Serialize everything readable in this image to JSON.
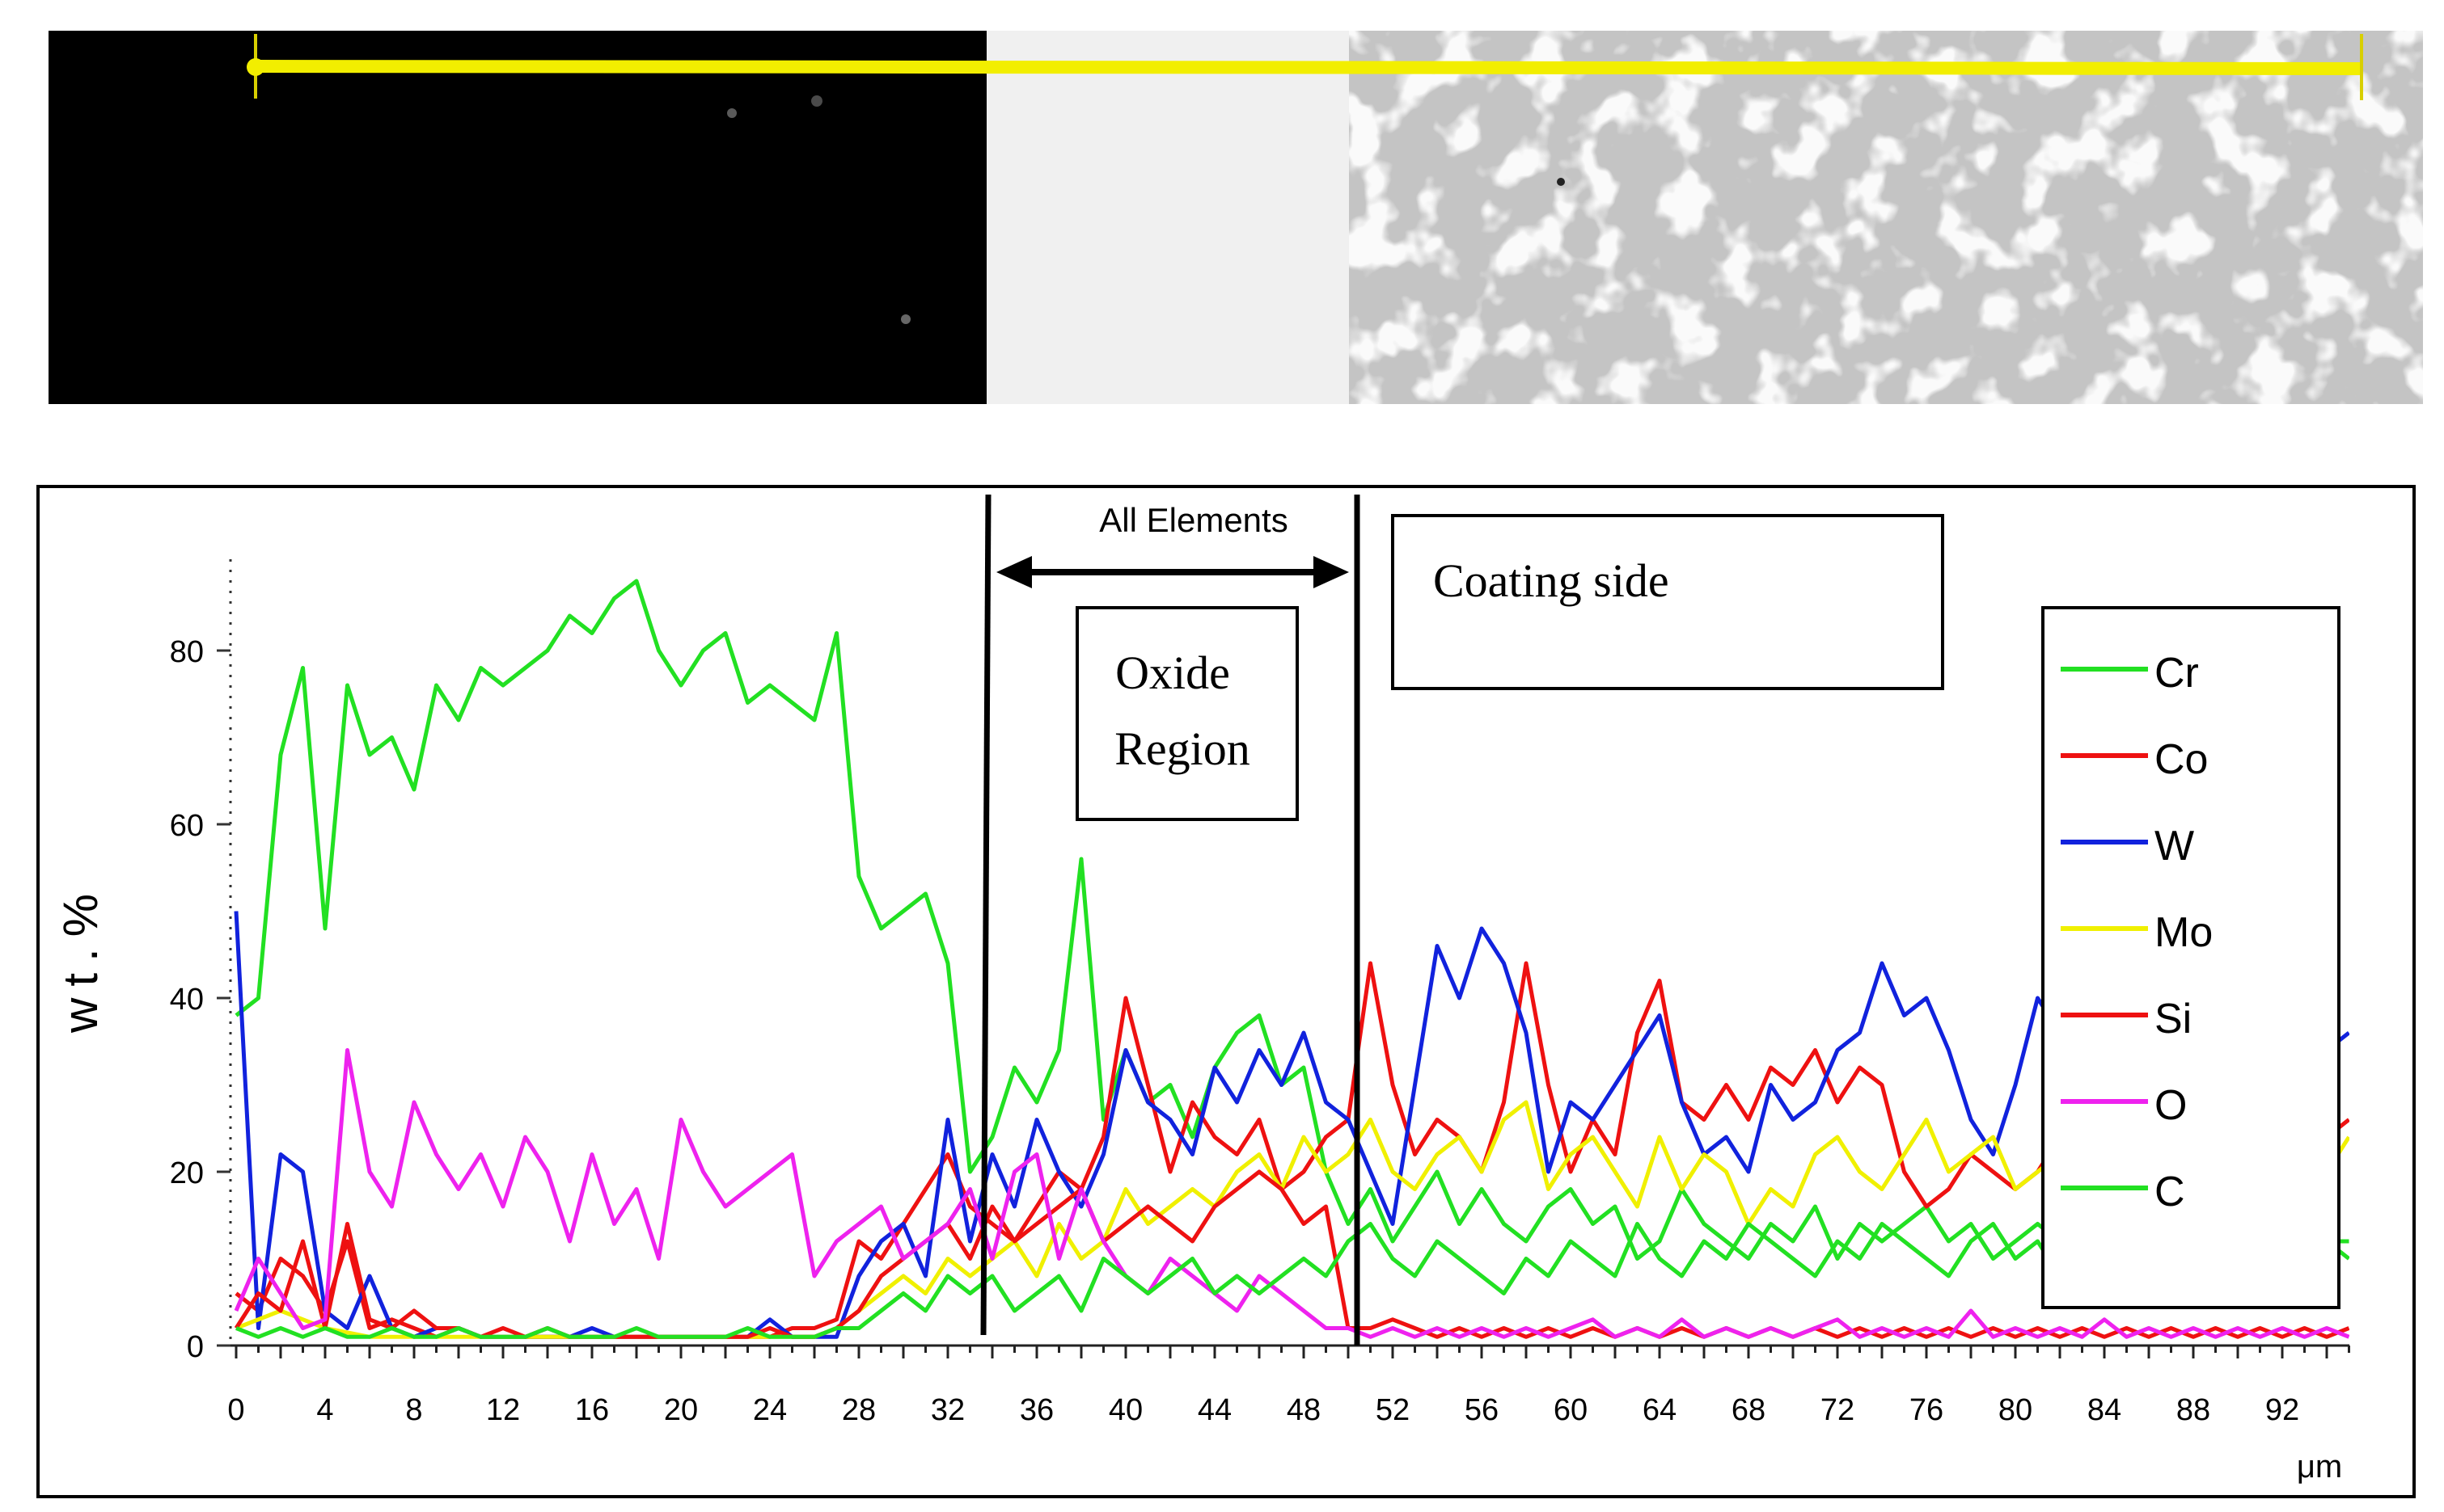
{
  "chart_data": {
    "type": "line",
    "title": "",
    "xlabel": "μm",
    "ylabel": "wt.%",
    "xlim": [
      0,
      95
    ],
    "ylim": [
      0,
      90
    ],
    "x_ticks": [
      "0",
      "4",
      "8",
      "12",
      "16",
      "20",
      "24",
      "28",
      "32",
      "36",
      "40",
      "44",
      "48",
      "52",
      "56",
      "60",
      "64",
      "68",
      "72",
      "76",
      "80",
      "84",
      "88",
      "92"
    ],
    "y_ticks": [
      "0",
      "20",
      "40",
      "60",
      "80"
    ],
    "grid": false,
    "legend_position": "right",
    "colors": {
      "Cr": "#22e022",
      "Co": "#ee1111",
      "W": "#1122dd",
      "Mo": "#f0f000",
      "Si": "#ee1111",
      "O": "#ee22ee",
      "C": "#22e022"
    },
    "annotations": {
      "region_arrow": "All Elements",
      "oxide_line1": "Oxide",
      "oxide_line2": "Region",
      "coating": "Coating side"
    },
    "series": [
      {
        "name": "Cr",
        "x": [
          0,
          1,
          2,
          3,
          4,
          5,
          6,
          7,
          8,
          9,
          10,
          11,
          12,
          13,
          14,
          15,
          16,
          17,
          18,
          19,
          20,
          21,
          22,
          23,
          24,
          25,
          26,
          27,
          28,
          29,
          30,
          31,
          32,
          33,
          34,
          35,
          36,
          37,
          38,
          39,
          40,
          41,
          42,
          43,
          44,
          45,
          46,
          47,
          48,
          49,
          50,
          51,
          52,
          53,
          54,
          55,
          56,
          57,
          58,
          59,
          60,
          61,
          62,
          63,
          64,
          65,
          66,
          67,
          68,
          69,
          70,
          71,
          72,
          73,
          74,
          75,
          76,
          77,
          78,
          79,
          80,
          81,
          82,
          83,
          84,
          85,
          86,
          87,
          88,
          89,
          90,
          91,
          92,
          93,
          94,
          95
        ],
        "values": [
          38,
          40,
          68,
          78,
          48,
          76,
          68,
          70,
          64,
          76,
          72,
          78,
          76,
          78,
          80,
          84,
          82,
          86,
          88,
          80,
          76,
          80,
          82,
          74,
          76,
          74,
          72,
          82,
          54,
          48,
          50,
          52,
          44,
          20,
          24,
          32,
          28,
          34,
          56,
          26,
          34,
          28,
          30,
          24,
          32,
          36,
          38,
          30,
          32,
          20,
          14,
          18,
          12,
          16,
          20,
          14,
          18,
          14,
          12,
          16,
          18,
          14,
          16,
          10,
          12,
          18,
          14,
          12,
          10,
          14,
          12,
          16,
          10,
          14,
          12,
          14,
          16,
          12,
          14,
          10,
          12,
          14,
          12,
          10,
          12,
          14,
          12,
          10,
          12,
          14,
          10,
          12,
          14,
          10,
          12,
          12
        ]
      },
      {
        "name": "Co",
        "x": [
          0,
          1,
          2,
          3,
          4,
          5,
          6,
          7,
          8,
          9,
          10,
          11,
          12,
          13,
          14,
          15,
          16,
          17,
          18,
          19,
          20,
          21,
          22,
          23,
          24,
          25,
          26,
          27,
          28,
          29,
          30,
          31,
          32,
          33,
          34,
          35,
          36,
          37,
          38,
          39,
          40,
          41,
          42,
          43,
          44,
          45,
          46,
          47,
          48,
          49,
          50,
          51,
          52,
          53,
          54,
          55,
          56,
          57,
          58,
          59,
          60,
          61,
          62,
          63,
          64,
          65,
          66,
          67,
          68,
          69,
          70,
          71,
          72,
          73,
          74,
          75,
          76,
          77,
          78,
          79,
          80,
          81,
          82,
          83,
          84,
          85,
          86,
          87,
          88,
          89,
          90,
          91,
          92,
          93,
          94,
          95
        ],
        "values": [
          6,
          4,
          10,
          8,
          4,
          12,
          2,
          3,
          2,
          1,
          2,
          1,
          1,
          1,
          1,
          1,
          1,
          1,
          1,
          1,
          1,
          1,
          1,
          1,
          1,
          2,
          2,
          3,
          12,
          10,
          14,
          18,
          22,
          16,
          14,
          12,
          16,
          20,
          18,
          24,
          40,
          30,
          20,
          28,
          24,
          22,
          26,
          18,
          20,
          24,
          26,
          44,
          30,
          22,
          26,
          24,
          20,
          28,
          44,
          30,
          20,
          26,
          22,
          36,
          42,
          28,
          26,
          30,
          26,
          32,
          30,
          34,
          28,
          32,
          30,
          20,
          16,
          18,
          22,
          20,
          18,
          20,
          24,
          22,
          24,
          22,
          26,
          20,
          24,
          22,
          22,
          24,
          26,
          22,
          24,
          26
        ]
      },
      {
        "name": "W",
        "x": [
          0,
          1,
          2,
          3,
          4,
          5,
          6,
          7,
          8,
          9,
          10,
          11,
          12,
          13,
          14,
          15,
          16,
          17,
          18,
          19,
          20,
          21,
          22,
          23,
          24,
          25,
          26,
          27,
          28,
          29,
          30,
          31,
          32,
          33,
          34,
          35,
          36,
          37,
          38,
          39,
          40,
          41,
          42,
          43,
          44,
          45,
          46,
          47,
          48,
          49,
          50,
          51,
          52,
          53,
          54,
          55,
          56,
          57,
          58,
          59,
          60,
          61,
          62,
          63,
          64,
          65,
          66,
          67,
          68,
          69,
          70,
          71,
          72,
          73,
          74,
          75,
          76,
          77,
          78,
          79,
          80,
          81,
          82,
          83,
          84,
          85,
          86,
          87,
          88,
          89,
          90,
          91,
          92,
          93,
          94,
          95
        ],
        "values": [
          50,
          2,
          22,
          20,
          4,
          2,
          8,
          2,
          1,
          2,
          2,
          1,
          1,
          1,
          1,
          1,
          2,
          1,
          1,
          1,
          1,
          1,
          1,
          1,
          3,
          1,
          1,
          1,
          8,
          12,
          14,
          8,
          26,
          12,
          22,
          16,
          26,
          20,
          16,
          22,
          34,
          28,
          26,
          22,
          32,
          28,
          34,
          30,
          36,
          28,
          26,
          20,
          14,
          30,
          46,
          40,
          48,
          44,
          36,
          20,
          28,
          26,
          30,
          34,
          38,
          28,
          22,
          24,
          20,
          30,
          26,
          28,
          34,
          36,
          44,
          38,
          40,
          34,
          26,
          22,
          30,
          40,
          36,
          28,
          32,
          34,
          30,
          38,
          26,
          30,
          34,
          28,
          32,
          30,
          34,
          36
        ]
      },
      {
        "name": "Mo",
        "x": [
          0,
          2,
          4,
          6,
          8,
          10,
          12,
          14,
          16,
          18,
          20,
          22,
          24,
          26,
          27,
          28,
          29,
          30,
          31,
          32,
          33,
          34,
          35,
          36,
          37,
          38,
          39,
          40,
          41,
          42,
          43,
          44,
          45,
          46,
          47,
          48,
          49,
          50,
          51,
          52,
          53,
          54,
          55,
          56,
          57,
          58,
          59,
          60,
          61,
          62,
          63,
          64,
          65,
          66,
          67,
          68,
          69,
          70,
          71,
          72,
          73,
          74,
          75,
          76,
          77,
          78,
          79,
          80,
          81,
          82,
          83,
          84,
          85,
          86,
          87,
          88,
          89,
          90,
          91,
          92,
          93,
          94,
          95
        ],
        "values": [
          2,
          4,
          2,
          1,
          1,
          1,
          1,
          1,
          1,
          1,
          1,
          1,
          1,
          1,
          2,
          4,
          6,
          8,
          6,
          10,
          8,
          10,
          12,
          8,
          14,
          10,
          12,
          18,
          14,
          16,
          18,
          16,
          20,
          22,
          18,
          24,
          20,
          22,
          26,
          20,
          18,
          22,
          24,
          20,
          26,
          28,
          18,
          22,
          24,
          20,
          16,
          24,
          18,
          22,
          20,
          14,
          18,
          16,
          22,
          24,
          20,
          18,
          22,
          26,
          20,
          22,
          24,
          18,
          20,
          22,
          20,
          24,
          22,
          20,
          18,
          22,
          24,
          20,
          22,
          24,
          22,
          20,
          24
        ]
      },
      {
        "name": "Si",
        "x": [
          0,
          1,
          2,
          3,
          4,
          5,
          6,
          7,
          8,
          9,
          10,
          11,
          12,
          13,
          14,
          15,
          16,
          17,
          18,
          19,
          20,
          21,
          22,
          23,
          24,
          25,
          26,
          27,
          28,
          29,
          30,
          31,
          32,
          33,
          34,
          35,
          36,
          37,
          38,
          39,
          40,
          41,
          42,
          43,
          44,
          45,
          46,
          47,
          48,
          49,
          50,
          51,
          52,
          53,
          54,
          55,
          56,
          57,
          58,
          59,
          60,
          61,
          62,
          63,
          64,
          65,
          66,
          67,
          68,
          69,
          70,
          71,
          72,
          73,
          74,
          75,
          76,
          77,
          78,
          79,
          80,
          81,
          82,
          83,
          84,
          85,
          86,
          87,
          88,
          89,
          90,
          91,
          92,
          93,
          94,
          95
        ],
        "values": [
          2,
          6,
          4,
          12,
          2,
          14,
          3,
          2,
          4,
          2,
          2,
          1,
          2,
          1,
          2,
          1,
          1,
          1,
          1,
          1,
          1,
          1,
          1,
          1,
          2,
          1,
          1,
          2,
          4,
          8,
          10,
          12,
          14,
          10,
          16,
          12,
          14,
          16,
          18,
          12,
          14,
          16,
          14,
          12,
          16,
          18,
          20,
          18,
          14,
          16,
          2,
          2,
          3,
          2,
          1,
          2,
          1,
          2,
          1,
          2,
          1,
          2,
          1,
          2,
          1,
          2,
          1,
          2,
          1,
          2,
          1,
          2,
          1,
          2,
          1,
          2,
          1,
          2,
          1,
          2,
          1,
          2,
          1,
          2,
          1,
          2,
          1,
          2,
          1,
          2,
          1,
          2,
          1,
          2,
          1,
          2
        ]
      },
      {
        "name": "O",
        "x": [
          0,
          1,
          2,
          3,
          4,
          5,
          6,
          7,
          8,
          9,
          10,
          11,
          12,
          13,
          14,
          15,
          16,
          17,
          18,
          19,
          20,
          21,
          22,
          23,
          24,
          25,
          26,
          27,
          28,
          29,
          30,
          31,
          32,
          33,
          34,
          35,
          36,
          37,
          38,
          39,
          40,
          41,
          42,
          43,
          44,
          45,
          46,
          47,
          48,
          49,
          50,
          51,
          52,
          53,
          54,
          55,
          56,
          57,
          58,
          59,
          60,
          61,
          62,
          63,
          64,
          65,
          66,
          67,
          68,
          69,
          70,
          71,
          72,
          73,
          74,
          75,
          76,
          77,
          78,
          79,
          80,
          81,
          82,
          83,
          84,
          85,
          86,
          87,
          88,
          89,
          90,
          91,
          92,
          93,
          94,
          95
        ],
        "values": [
          4,
          10,
          6,
          2,
          3,
          34,
          20,
          16,
          28,
          22,
          18,
          22,
          16,
          24,
          20,
          12,
          22,
          14,
          18,
          10,
          26,
          20,
          16,
          18,
          20,
          22,
          8,
          12,
          14,
          16,
          10,
          12,
          14,
          18,
          10,
          20,
          22,
          10,
          18,
          12,
          8,
          6,
          10,
          8,
          6,
          4,
          8,
          6,
          4,
          2,
          2,
          1,
          2,
          1,
          2,
          1,
          2,
          1,
          2,
          1,
          2,
          3,
          1,
          2,
          1,
          3,
          1,
          2,
          1,
          2,
          1,
          2,
          3,
          1,
          2,
          1,
          2,
          1,
          4,
          1,
          2,
          1,
          2,
          1,
          3,
          1,
          2,
          1,
          2,
          1,
          2,
          1,
          2,
          1,
          2,
          1
        ]
      },
      {
        "name": "C",
        "x": [
          0,
          1,
          2,
          3,
          4,
          5,
          6,
          7,
          8,
          9,
          10,
          11,
          12,
          13,
          14,
          15,
          16,
          17,
          18,
          19,
          20,
          21,
          22,
          23,
          24,
          25,
          26,
          27,
          28,
          29,
          30,
          31,
          32,
          33,
          34,
          35,
          36,
          37,
          38,
          39,
          40,
          41,
          42,
          43,
          44,
          45,
          46,
          47,
          48,
          49,
          50,
          51,
          52,
          53,
          54,
          55,
          56,
          57,
          58,
          59,
          60,
          61,
          62,
          63,
          64,
          65,
          66,
          67,
          68,
          69,
          70,
          71,
          72,
          73,
          74,
          75,
          76,
          77,
          78,
          79,
          80,
          81,
          82,
          83,
          84,
          85,
          86,
          87,
          88,
          89,
          90,
          91,
          92,
          93,
          94,
          95
        ],
        "values": [
          2,
          1,
          2,
          1,
          2,
          1,
          1,
          2,
          1,
          1,
          2,
          1,
          1,
          1,
          2,
          1,
          1,
          1,
          2,
          1,
          1,
          1,
          1,
          2,
          1,
          1,
          1,
          2,
          2,
          4,
          6,
          4,
          8,
          6,
          8,
          4,
          6,
          8,
          4,
          10,
          8,
          6,
          8,
          10,
          6,
          8,
          6,
          8,
          10,
          8,
          12,
          14,
          10,
          8,
          12,
          10,
          8,
          6,
          10,
          8,
          12,
          10,
          8,
          14,
          10,
          8,
          12,
          10,
          14,
          12,
          10,
          8,
          12,
          10,
          14,
          12,
          10,
          8,
          12,
          14,
          10,
          12,
          8,
          10,
          12,
          14,
          10,
          8,
          12,
          10,
          14,
          12,
          10,
          8,
          12,
          10
        ]
      }
    ]
  }
}
